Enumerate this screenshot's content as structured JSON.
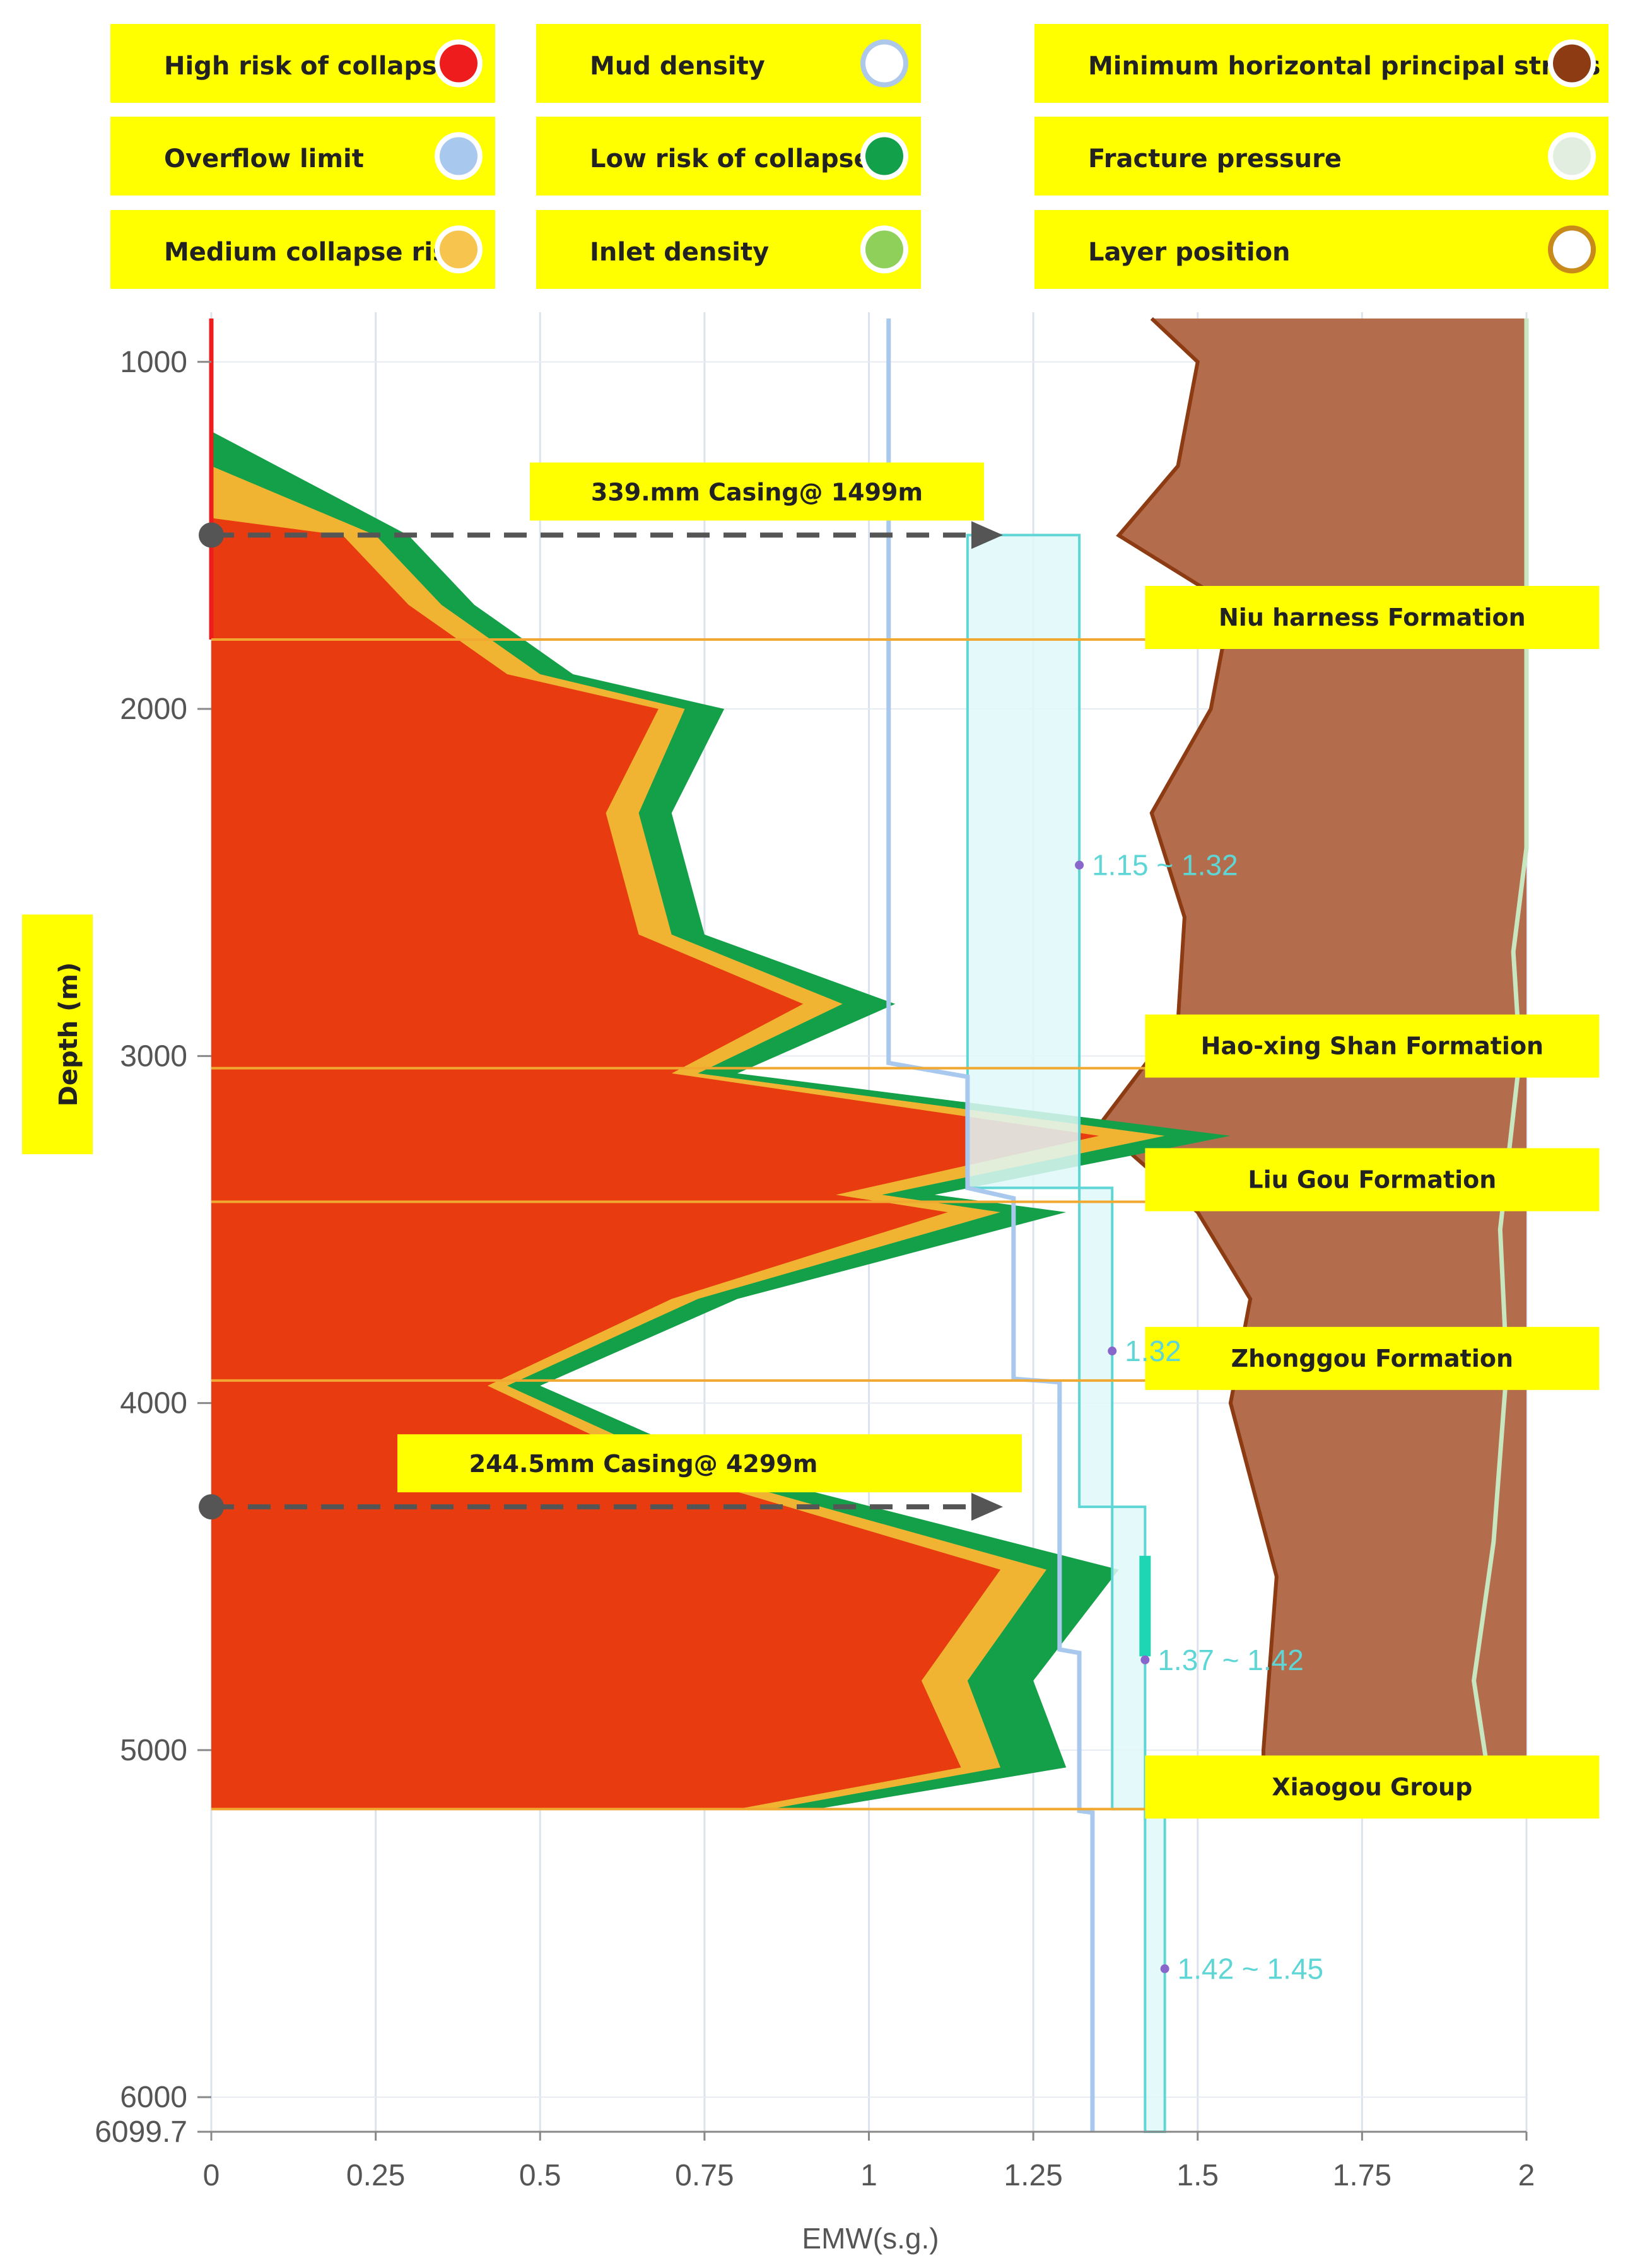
{
  "chart_data": {
    "type": "area",
    "title": "",
    "xlabel": "EMW(s.g.)",
    "ylabel": "Depth (m)",
    "xlim": [
      0,
      2
    ],
    "ylim": [
      6099.7,
      875
    ],
    "grid": true,
    "x_ticks": [
      "0",
      "0.25",
      "0.5",
      "0.75",
      "1",
      "1.25",
      "1.5",
      "1.75",
      "2"
    ],
    "y_ticks": [
      "1000",
      "2000",
      "3000",
      "4000",
      "5000",
      "6000",
      "6099.7"
    ],
    "legend": [
      {
        "label": "High risk of collapse",
        "color": "#ee1c1c",
        "ring": "#ffffff"
      },
      {
        "label": "Mud density",
        "color": "#ffffff",
        "ring": "#aec8ea"
      },
      {
        "label": "Minimum horizontal principal stress",
        "color": "#8c3b12",
        "ring": "#ffffff"
      },
      {
        "label": "Overflow limit",
        "color": "#a8c8ee",
        "ring": "#ffffff"
      },
      {
        "label": "Low risk of collapse",
        "color": "#12a04a",
        "ring": "#ffffff"
      },
      {
        "label": "Fracture pressure",
        "color": "#e2efe0",
        "ring": "#ffffff"
      },
      {
        "label": "Medium collapse risk.",
        "color": "#f7c54e",
        "ring": "#ffffff"
      },
      {
        "label": "Inlet density",
        "color": "#8fd05a",
        "ring": "#ffffff"
      },
      {
        "label": "Layer position",
        "color": "#ffffff",
        "ring": "#c98a1c"
      }
    ],
    "formations": [
      {
        "name": "Niu harness Formation",
        "depth": 1800
      },
      {
        "name": "Hao-xing Shan Formation",
        "depth": 3035
      },
      {
        "name": "Liu Gou Formation",
        "depth": 3420
      },
      {
        "name": "Zhonggou Formation",
        "depth": 3935
      },
      {
        "name": "Xiaogou Group",
        "depth": 5170
      }
    ],
    "casings": [
      {
        "label": "339.mm Casing@ 1499m",
        "depth": 1499
      },
      {
        "label": "244.5mm Casing@ 4299m",
        "depth": 4299
      }
    ],
    "mud_window_labels": [
      {
        "text": "1.15 ~ 1.32",
        "depth": 2450,
        "emw": 1.32
      },
      {
        "text": "1.32",
        "depth": 3850,
        "emw": 1.37
      },
      {
        "text": "1.37 ~ 1.42",
        "depth": 4740,
        "emw": 1.42
      },
      {
        "text": "1.42 ~ 1.45",
        "depth": 5630,
        "emw": 1.45
      }
    ],
    "series": [
      {
        "name": "Overflow limit",
        "color": "#a8c8ee",
        "points": [
          [
            1.03,
            875
          ],
          [
            1.03,
            3020
          ],
          [
            1.15,
            3060
          ],
          [
            1.15,
            3380
          ],
          [
            1.22,
            3410
          ],
          [
            1.22,
            3930
          ],
          [
            1.29,
            3940
          ],
          [
            1.29,
            4710
          ],
          [
            1.32,
            4720
          ],
          [
            1.32,
            5175
          ],
          [
            1.34,
            5180
          ],
          [
            1.34,
            6099.7
          ]
        ]
      },
      {
        "name": "Mud density",
        "color": "#5fd6d6",
        "steps": [
          {
            "from": 1499,
            "to": 3380,
            "min": 1.15,
            "max": 1.32
          },
          {
            "from": 3380,
            "to": 4299,
            "min": 1.32,
            "max": 1.37
          },
          {
            "from": 4299,
            "to": 5170,
            "min": 1.37,
            "max": 1.42
          },
          {
            "from": 5170,
            "to": 6099.7,
            "min": 1.42,
            "max": 1.45
          }
        ]
      },
      {
        "name": "Inlet density",
        "color": "#1ed6b4",
        "points": [
          [
            1.42,
            4440
          ],
          [
            1.42,
            4730
          ]
        ]
      },
      {
        "name": "Minimum horizontal principal stress",
        "color": "#b36d4c",
        "points": [
          [
            1.43,
            875
          ],
          [
            1.5,
            1000
          ],
          [
            1.47,
            1300
          ],
          [
            1.38,
            1500
          ],
          [
            1.55,
            1700
          ],
          [
            1.52,
            2000
          ],
          [
            1.43,
            2300
          ],
          [
            1.48,
            2600
          ],
          [
            1.47,
            2900
          ],
          [
            1.35,
            3200
          ],
          [
            1.5,
            3450
          ],
          [
            1.58,
            3700
          ],
          [
            1.55,
            4000
          ],
          [
            1.62,
            4500
          ],
          [
            1.6,
            5000
          ],
          [
            1.6,
            5170
          ]
        ]
      },
      {
        "name": "Fracture pressure",
        "color": "#c8e6c0",
        "points": [
          [
            2.0,
            875
          ],
          [
            2.0,
            2400
          ],
          [
            1.98,
            2700
          ],
          [
            1.99,
            3000
          ],
          [
            1.96,
            3500
          ],
          [
            1.97,
            3900
          ],
          [
            1.95,
            4400
          ],
          [
            1.92,
            4800
          ],
          [
            1.95,
            5170
          ]
        ]
      },
      {
        "name": "Low risk of collapse",
        "color": "#14a048",
        "points": [
          [
            0,
            1200
          ],
          [
            0.1,
            1300
          ],
          [
            0.3,
            1500
          ],
          [
            0.4,
            1700
          ],
          [
            0.55,
            1900
          ],
          [
            0.78,
            2000
          ],
          [
            0.7,
            2300
          ],
          [
            0.75,
            2650
          ],
          [
            1.04,
            2850
          ],
          [
            0.8,
            3050
          ],
          [
            1.55,
            3230
          ],
          [
            1.1,
            3400
          ],
          [
            1.3,
            3450
          ],
          [
            0.8,
            3700
          ],
          [
            0.5,
            3950
          ],
          [
            0.8,
            4200
          ],
          [
            1.38,
            4480
          ],
          [
            1.25,
            4800
          ],
          [
            1.3,
            5050
          ],
          [
            0.92,
            5170
          ]
        ]
      },
      {
        "name": "Medium collapse risk.",
        "color": "#f0b432",
        "points": [
          [
            0,
            1300
          ],
          [
            0.25,
            1500
          ],
          [
            0.35,
            1700
          ],
          [
            0.5,
            1900
          ],
          [
            0.72,
            2000
          ],
          [
            0.65,
            2300
          ],
          [
            0.7,
            2650
          ],
          [
            0.96,
            2850
          ],
          [
            0.74,
            3050
          ],
          [
            1.45,
            3230
          ],
          [
            1.02,
            3400
          ],
          [
            1.2,
            3450
          ],
          [
            0.74,
            3700
          ],
          [
            0.45,
            3950
          ],
          [
            0.74,
            4200
          ],
          [
            1.27,
            4480
          ],
          [
            1.15,
            4800
          ],
          [
            1.2,
            5050
          ],
          [
            0.85,
            5170
          ]
        ]
      },
      {
        "name": "High risk of collapse",
        "color": "#e83c10",
        "points": [
          [
            0,
            1450
          ],
          [
            0.2,
            1500
          ],
          [
            0.3,
            1700
          ],
          [
            0.45,
            1900
          ],
          [
            0.68,
            2000
          ],
          [
            0.6,
            2300
          ],
          [
            0.65,
            2650
          ],
          [
            0.9,
            2850
          ],
          [
            0.7,
            3050
          ],
          [
            1.35,
            3230
          ],
          [
            0.95,
            3400
          ],
          [
            1.12,
            3450
          ],
          [
            0.7,
            3700
          ],
          [
            0.42,
            3950
          ],
          [
            0.7,
            4200
          ],
          [
            1.2,
            4480
          ],
          [
            1.08,
            4800
          ],
          [
            1.14,
            5050
          ],
          [
            0.8,
            5170
          ]
        ]
      }
    ]
  }
}
